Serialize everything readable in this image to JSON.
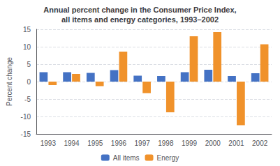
{
  "chart_data": {
    "type": "bar",
    "title": "Annual percent change in the Consumer Price Index,\nall items and energy categories, 1993–2002",
    "ylabel": "Percent change",
    "categories": [
      "1993",
      "1994",
      "1995",
      "1996",
      "1997",
      "1998",
      "1999",
      "2000",
      "2001",
      "2002"
    ],
    "series": [
      {
        "name": "All items",
        "color": "#4472c4",
        "values": [
          2.7,
          2.7,
          2.5,
          3.3,
          1.7,
          1.6,
          2.7,
          3.4,
          1.6,
          2.4
        ]
      },
      {
        "name": "Energy",
        "color": "#f0922b",
        "values": [
          -1.0,
          2.2,
          -1.3,
          8.6,
          -3.3,
          -8.8,
          13.0,
          14.2,
          -12.5,
          10.7
        ]
      }
    ],
    "ylim": [
      -15,
      15
    ],
    "yticks": [
      -15,
      -10,
      -5,
      0,
      5,
      10,
      15
    ],
    "grid": true,
    "legend": "bottom"
  }
}
